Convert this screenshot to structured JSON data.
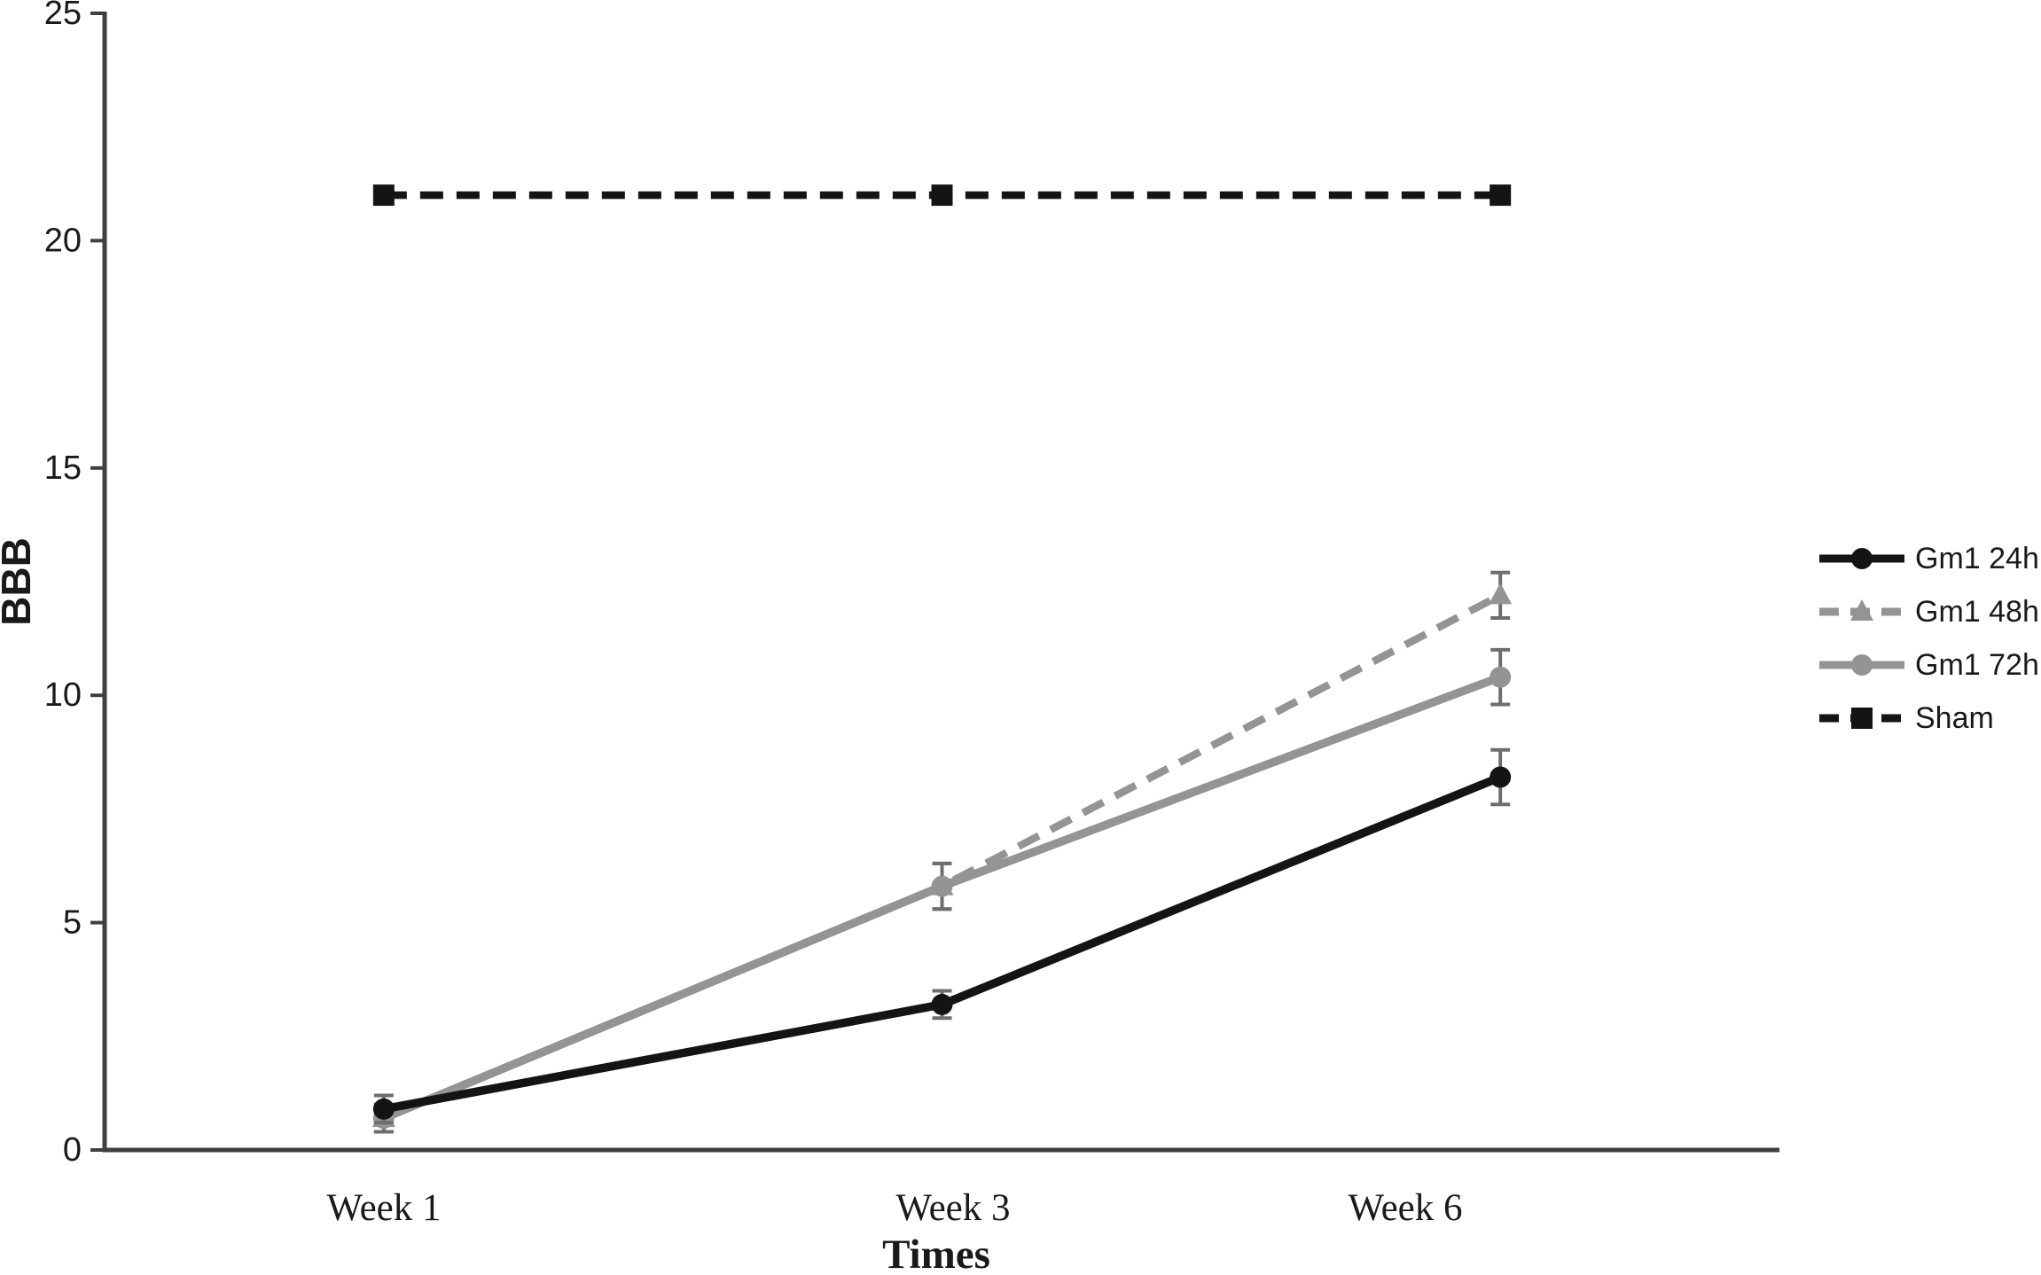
{
  "figure": {
    "background": "#ffffff"
  },
  "chart_data": {
    "type": "line",
    "title": "",
    "xlabel": "Times",
    "ylabel": "BBB",
    "categories": [
      "Week 1",
      "Week 3",
      "Week 6"
    ],
    "ylim": [
      0,
      25
    ],
    "yticks": [
      0,
      5,
      10,
      15,
      20,
      25
    ],
    "grid": false,
    "legend_position": "right-of-plot",
    "error_bar_color": "#6e6e6e",
    "axis_color": "#3f3f3f",
    "series": [
      {
        "name": "Gm1 24h",
        "values": [
          0.9,
          3.2,
          8.2
        ],
        "errors": [
          0.3,
          0.3,
          0.6
        ],
        "color": "#141414",
        "line_style": "solid",
        "marker": "circle"
      },
      {
        "name": "Gm1 48h",
        "values": [
          0.7,
          5.8,
          12.2
        ],
        "errors": [
          0.3,
          0.5,
          0.5
        ],
        "color": "#949494",
        "line_style": "dashed",
        "marker": "triangle"
      },
      {
        "name": "Gm1 72h",
        "values": [
          0.7,
          5.8,
          10.4
        ],
        "errors": [
          0.3,
          0.5,
          0.6
        ],
        "color": "#949494",
        "line_style": "solid",
        "marker": "circle"
      },
      {
        "name": "Sham",
        "values": [
          21,
          21,
          21
        ],
        "errors": [
          0,
          0,
          0
        ],
        "color": "#141414",
        "line_style": "dashed",
        "marker": "square"
      }
    ]
  }
}
